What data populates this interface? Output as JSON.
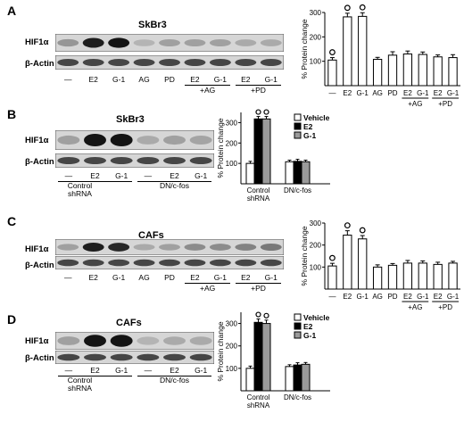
{
  "panels": [
    {
      "letter": "A",
      "title": "SkBr3",
      "rows": [
        "HIF1α",
        "β-Actin"
      ],
      "lanes": [
        "—",
        "E2",
        "G-1",
        "AG",
        "PD",
        "E2",
        "G-1",
        "E2",
        "G-1"
      ],
      "groups": [
        "+AG",
        "+PD"
      ],
      "chart_data": {
        "type": "bar",
        "ylabel": "% Protein change",
        "ylim": [
          0,
          300
        ],
        "yticks": [
          "100",
          "200",
          "300"
        ],
        "categories": [
          "—",
          "E2",
          "G-1",
          "AG",
          "PD",
          "E2",
          "G-1",
          "E2",
          "G-1"
        ],
        "category_groups": [
          "",
          "",
          "",
          "",
          "",
          "+AG",
          "+AG",
          "+PD",
          "+PD"
        ],
        "values": [
          105,
          282,
          284,
          108,
          125,
          130,
          128,
          118,
          115
        ],
        "errors": [
          10,
          15,
          15,
          8,
          14,
          12,
          10,
          8,
          12
        ],
        "markers": [
          "o",
          "o",
          "o",
          "",
          "",
          "",
          "",
          "",
          ""
        ],
        "bar_color": "#ffffff"
      }
    },
    {
      "letter": "B",
      "title": "SkBr3",
      "rows": [
        "HIF1α",
        "β-Actin"
      ],
      "group_labels": [
        "Control shRNA",
        "DN/c-fos"
      ],
      "lanes": [
        "—",
        "E2",
        "G-1",
        "—",
        "E2",
        "G-1"
      ],
      "chart_data": {
        "type": "bar",
        "ylabel": "% Protein change",
        "ylim": [
          0,
          350
        ],
        "yticks": [
          "100",
          "200",
          "300"
        ],
        "categories": [
          "Control shRNA",
          "DN/c-fos"
        ],
        "series": [
          {
            "name": "Vehicle",
            "values": [
              100,
              108
            ],
            "errors": [
              10,
              8
            ],
            "markers": [
              "",
              ""
            ],
            "color": "#ffffff"
          },
          {
            "name": "E2",
            "values": [
              318,
              110
            ],
            "errors": [
              12,
              10
            ],
            "markers": [
              "o",
              ""
            ],
            "color": "#000000"
          },
          {
            "name": "G-1",
            "values": [
              318,
              108
            ],
            "errors": [
              12,
              8
            ],
            "markers": [
              "o",
              ""
            ],
            "color": "#9a9a9a"
          }
        ],
        "legend": "top-right"
      }
    },
    {
      "letter": "C",
      "title": "CAFs",
      "rows": [
        "HIF1α",
        "β-Actin"
      ],
      "lanes": [
        "—",
        "E2",
        "G-1",
        "AG",
        "PD",
        "E2",
        "G-1",
        "E2",
        "G-1"
      ],
      "groups": [
        "+AG",
        "+PD"
      ],
      "chart_data": {
        "type": "bar",
        "ylabel": "% Protein change",
        "ylim": [
          0,
          300
        ],
        "yticks": [
          "100",
          "200",
          "300"
        ],
        "categories": [
          "—",
          "E2",
          "G-1",
          "AG",
          "PD",
          "E2",
          "G-1",
          "E2",
          "G-1"
        ],
        "category_groups": [
          "",
          "",
          "",
          "",
          "",
          "+AG",
          "+AG",
          "+PD",
          "+PD"
        ],
        "values": [
          105,
          245,
          228,
          100,
          108,
          118,
          118,
          112,
          118
        ],
        "errors": [
          12,
          20,
          15,
          10,
          8,
          12,
          10,
          10,
          8
        ],
        "markers": [
          "o",
          "o",
          "o",
          "",
          "",
          "",
          "",
          "",
          ""
        ],
        "bar_color": "#ffffff"
      }
    },
    {
      "letter": "D",
      "title": "CAFs",
      "rows": [
        "HIF1α",
        "β-Actin"
      ],
      "group_labels": [
        "Control shRNA",
        "DN/c-fos"
      ],
      "lanes": [
        "—",
        "E2",
        "G-1",
        "—",
        "E2",
        "G-1"
      ],
      "chart_data": {
        "type": "bar",
        "ylabel": "% Protein change",
        "ylim": [
          0,
          350
        ],
        "yticks": [
          "100",
          "200",
          "300"
        ],
        "categories": [
          "Control shRNA",
          "DN/c-fos"
        ],
        "series": [
          {
            "name": "Vehicle",
            "values": [
              100,
              108
            ],
            "errors": [
              10,
              8
            ],
            "markers": [
              "",
              ""
            ],
            "color": "#ffffff"
          },
          {
            "name": "E2",
            "values": [
              305,
              115
            ],
            "errors": [
              15,
              10
            ],
            "markers": [
              "o",
              ""
            ],
            "color": "#000000"
          },
          {
            "name": "G-1",
            "values": [
              300,
              118
            ],
            "errors": [
              15,
              8
            ],
            "markers": [
              "o",
              ""
            ],
            "color": "#9a9a9a"
          }
        ],
        "legend": "top-right"
      }
    }
  ]
}
